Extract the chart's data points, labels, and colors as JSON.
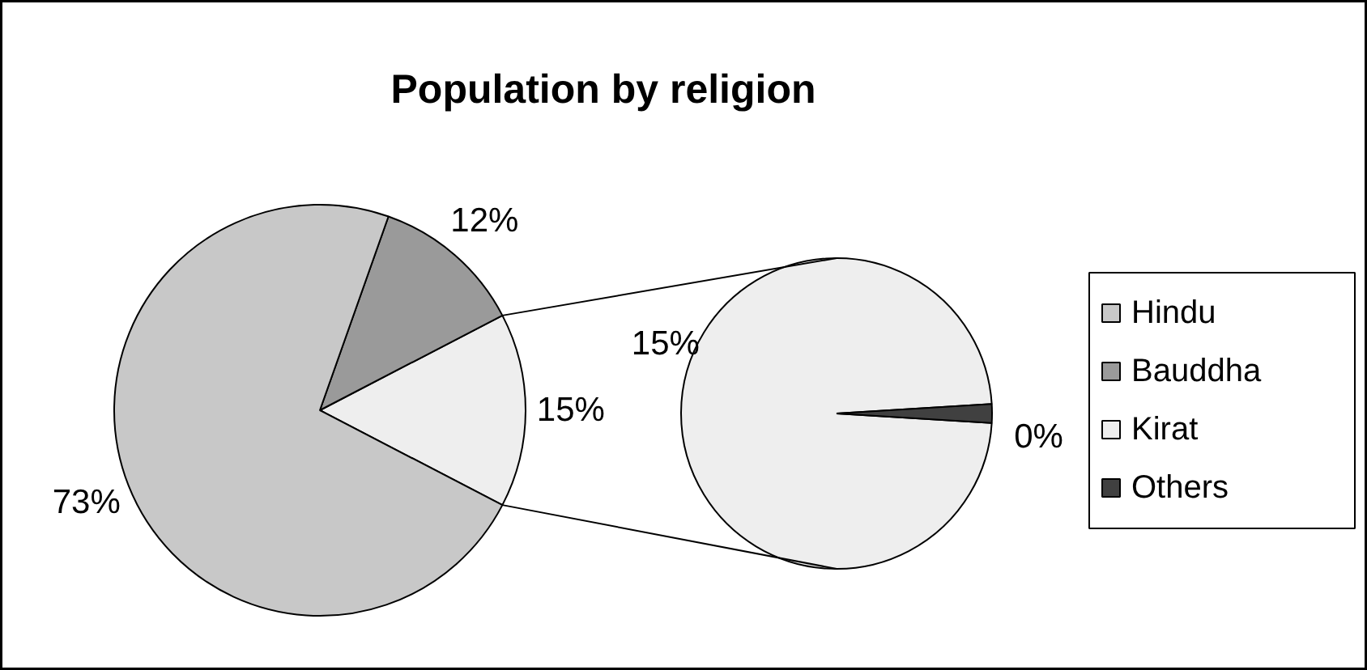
{
  "chart_data": [
    {
      "type": "pie",
      "title": "Population by religion",
      "categories": [
        "Hindu",
        "Bauddha",
        null
      ],
      "values": [
        73,
        12,
        15.3
      ],
      "value_labels": [
        "73%",
        "12%",
        "15%"
      ],
      "colors": [
        "#c8c8c8",
        "#9a9a9a",
        "#eeeeee"
      ],
      "legend": "right"
    },
    {
      "type": "pie",
      "categories": [
        "Kirat",
        "Others"
      ],
      "values": [
        15,
        0.3
      ],
      "value_labels": [
        "15%",
        "0%"
      ],
      "colors": [
        "#eeeeee",
        "#404040"
      ],
      "legend": "right"
    }
  ]
}
